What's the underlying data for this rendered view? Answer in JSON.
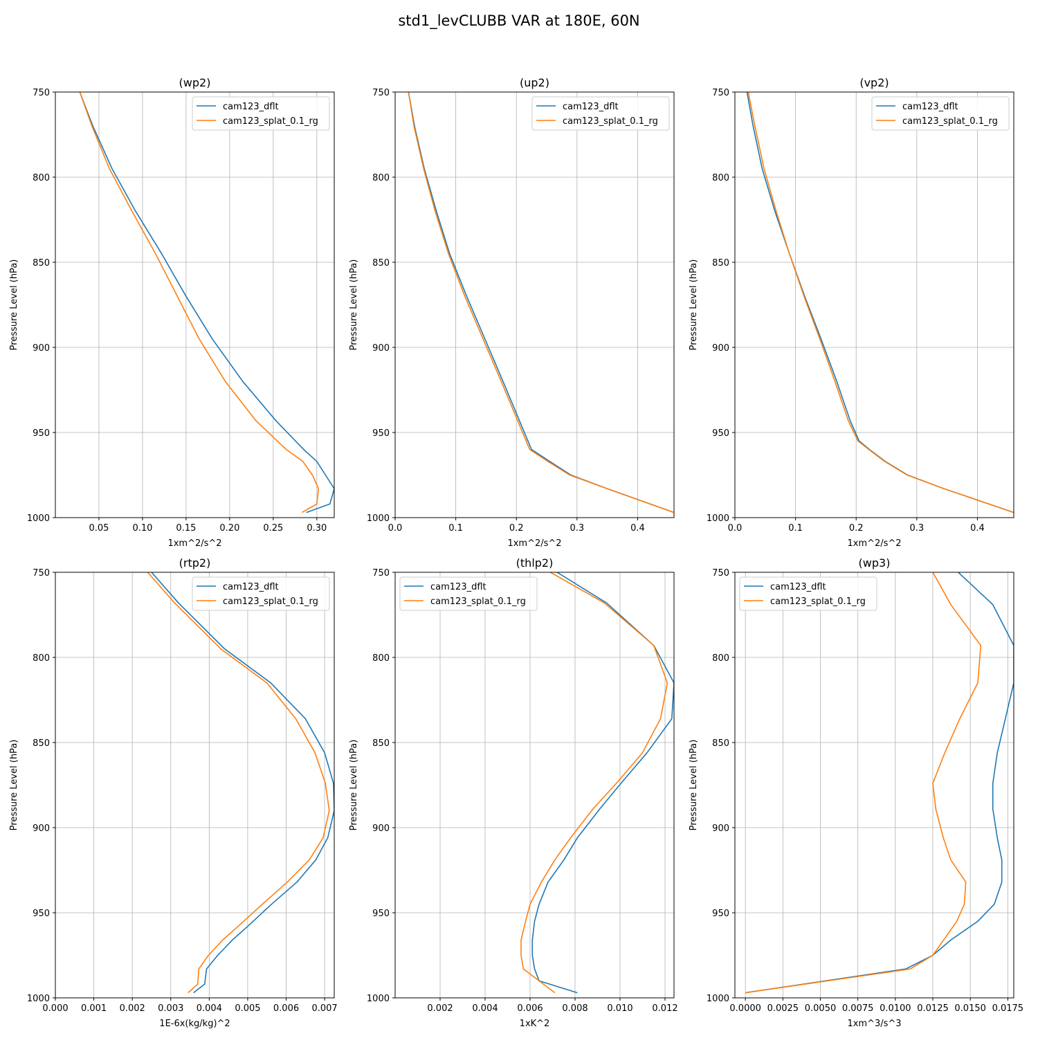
{
  "title": "std1_levCLUBB VAR at 180E, 60N",
  "colors": {
    "cam123_dflt": "#1f77b4",
    "cam123_splat_0.1_rg": "#ff7f0e"
  },
  "chart_data": [
    {
      "type": "line",
      "title": "(wp2)",
      "xlabel": "1xm^2/s^2",
      "ylabel": "Pressure Level (hPa)",
      "xlim": [
        0,
        0.32
      ],
      "ylim": [
        1000,
        750
      ],
      "y_inverted": true,
      "xticks": [
        0.05,
        0.1,
        0.15,
        0.2,
        0.25,
        0.3
      ],
      "xtick_labels": [
        "0.05",
        "0.10",
        "0.15",
        "0.20",
        "0.25",
        "0.30"
      ],
      "yticks": [
        750,
        800,
        850,
        900,
        950,
        1000
      ],
      "ytick_labels": [
        "750",
        "800",
        "850",
        "900",
        "950",
        "1000"
      ],
      "grid": true,
      "legend": "upper right",
      "series": [
        {
          "name": "cam123_dflt",
          "x": [
            0.028,
            0.043,
            0.065,
            0.092,
            0.122,
            0.15,
            0.18,
            0.215,
            0.253,
            0.285,
            0.3,
            0.31,
            0.32,
            0.315,
            0.288
          ],
          "y": [
            750,
            770,
            795,
            820,
            845,
            870,
            895,
            920,
            943,
            960,
            967,
            975,
            983,
            992,
            997
          ]
        },
        {
          "name": "cam123_splat_0.1_rg",
          "x": [
            0.028,
            0.042,
            0.062,
            0.088,
            0.115,
            0.14,
            0.165,
            0.195,
            0.23,
            0.265,
            0.284,
            0.295,
            0.302,
            0.3,
            0.283
          ],
          "y": [
            750,
            770,
            795,
            820,
            845,
            870,
            895,
            920,
            943,
            960,
            967,
            975,
            983,
            992,
            997
          ]
        }
      ]
    },
    {
      "type": "line",
      "title": "(up2)",
      "xlabel": "1xm^2/s^2",
      "ylabel": "Pressure Level (hPa)",
      "xlim": [
        0,
        0.46
      ],
      "ylim": [
        1000,
        750
      ],
      "y_inverted": true,
      "xticks": [
        0.0,
        0.1,
        0.2,
        0.3,
        0.4
      ],
      "xtick_labels": [
        "0.0",
        "0.1",
        "0.2",
        "0.3",
        "0.4"
      ],
      "yticks": [
        750,
        800,
        850,
        900,
        950,
        1000
      ],
      "ytick_labels": [
        "750",
        "800",
        "850",
        "900",
        "950",
        "1000"
      ],
      "grid": true,
      "legend": "upper right",
      "series": [
        {
          "name": "cam123_dflt",
          "x": [
            0.022,
            0.032,
            0.048,
            0.068,
            0.09,
            0.118,
            0.148,
            0.178,
            0.205,
            0.225,
            0.255,
            0.29,
            0.35,
            0.46
          ],
          "y": [
            750,
            770,
            795,
            820,
            845,
            870,
            895,
            920,
            943,
            960,
            967,
            975,
            983,
            997
          ]
        },
        {
          "name": "cam123_splat_0.1_rg",
          "x": [
            0.022,
            0.031,
            0.047,
            0.066,
            0.088,
            0.115,
            0.145,
            0.175,
            0.202,
            0.222,
            0.252,
            0.288,
            0.35,
            0.46
          ],
          "y": [
            750,
            770,
            795,
            820,
            845,
            870,
            895,
            920,
            943,
            960,
            967,
            975,
            983,
            997
          ]
        }
      ]
    },
    {
      "type": "line",
      "title": "(vp2)",
      "xlabel": "1xm^2/s^2",
      "ylabel": "Pressure Level (hPa)",
      "xlim": [
        0,
        0.46
      ],
      "ylim": [
        1000,
        750
      ],
      "y_inverted": true,
      "xticks": [
        0.0,
        0.1,
        0.2,
        0.3,
        0.4
      ],
      "xtick_labels": [
        "0.0",
        "0.1",
        "0.2",
        "0.3",
        "0.4"
      ],
      "yticks": [
        750,
        800,
        850,
        900,
        950,
        1000
      ],
      "ytick_labels": [
        "750",
        "800",
        "850",
        "900",
        "950",
        "1000"
      ],
      "grid": true,
      "legend": "upper right",
      "series": [
        {
          "name": "cam123_dflt",
          "x": [
            0.02,
            0.03,
            0.045,
            0.066,
            0.09,
            0.115,
            0.142,
            0.168,
            0.19,
            0.205,
            0.222,
            0.248,
            0.285,
            0.345,
            0.46
          ],
          "y": [
            750,
            770,
            795,
            820,
            845,
            870,
            895,
            920,
            943,
            955,
            960,
            967,
            975,
            983,
            997
          ]
        },
        {
          "name": "cam123_splat_0.1_rg",
          "x": [
            0.022,
            0.033,
            0.048,
            0.068,
            0.09,
            0.114,
            0.14,
            0.165,
            0.187,
            0.203,
            0.221,
            0.247,
            0.284,
            0.345,
            0.46
          ],
          "y": [
            750,
            770,
            795,
            820,
            845,
            870,
            895,
            920,
            943,
            955,
            960,
            967,
            975,
            983,
            997
          ]
        }
      ]
    },
    {
      "type": "line",
      "title": "(rtp2)",
      "xlabel": "1E-6x(kg/kg)^2",
      "ylabel": "Pressure Level (hPa)",
      "xlim": [
        0,
        0.00725
      ],
      "ylim": [
        1000,
        750
      ],
      "y_inverted": true,
      "xticks": [
        0,
        0.001,
        0.002,
        0.003,
        0.004,
        0.005,
        0.006,
        0.007
      ],
      "xtick_labels": [
        "0.000",
        "0.001",
        "0.002",
        "0.003",
        "0.004",
        "0.005",
        "0.006",
        "0.007"
      ],
      "yticks": [
        750,
        800,
        850,
        900,
        950,
        1000
      ],
      "ytick_labels": [
        "750",
        "800",
        "850",
        "900",
        "950",
        "1000"
      ],
      "grid": true,
      "legend": "upper right",
      "series": [
        {
          "name": "cam123_dflt",
          "x": [
            0.0025,
            0.0032,
            0.0044,
            0.0056,
            0.0065,
            0.007,
            0.00723,
            0.00725,
            0.00708,
            0.00677,
            0.00628,
            0.00562,
            0.005,
            0.0046,
            0.00422,
            0.00393,
            0.00388,
            0.00359
          ],
          "y": [
            750,
            768,
            795,
            815,
            836,
            856,
            874,
            890,
            906,
            919,
            932,
            945,
            958,
            966,
            975,
            983,
            992,
            997
          ]
        },
        {
          "name": "cam123_splat_0.1_rg",
          "x": [
            0.0024,
            0.0031,
            0.0043,
            0.0055,
            0.00625,
            0.00675,
            0.00702,
            0.00712,
            0.00696,
            0.0066,
            0.00603,
            0.00538,
            0.00475,
            0.00435,
            0.00398,
            0.00373,
            0.0037,
            0.00345
          ],
          "y": [
            750,
            768,
            795,
            815,
            836,
            856,
            874,
            890,
            906,
            919,
            932,
            945,
            958,
            966,
            975,
            983,
            992,
            997
          ]
        }
      ]
    },
    {
      "type": "line",
      "title": "(thlp2)",
      "xlabel": "1xK^2",
      "ylabel": "Pressure Level (hPa)",
      "xlim": [
        0,
        0.0124
      ],
      "ylim": [
        1000,
        750
      ],
      "y_inverted": true,
      "xticks": [
        0.002,
        0.004,
        0.006,
        0.008,
        0.01,
        0.012
      ],
      "xtick_labels": [
        "0.002",
        "0.004",
        "0.006",
        "0.008",
        "0.010",
        "0.012"
      ],
      "yticks": [
        750,
        800,
        850,
        900,
        950,
        1000
      ],
      "ytick_labels": [
        "750",
        "800",
        "850",
        "900",
        "950",
        "1000"
      ],
      "grid": true,
      "legend": "upper left",
      "series": [
        {
          "name": "cam123_dflt",
          "x": [
            0.0072,
            0.0094,
            0.0115,
            0.0124,
            0.0123,
            0.0112,
            0.0101,
            0.0091,
            0.0081,
            0.0075,
            0.0068,
            0.0064,
            0.0062,
            0.0061,
            0.0061,
            0.0061,
            0.0062,
            0.0064,
            0.0081
          ],
          "y": [
            750,
            768,
            793,
            815,
            836,
            856,
            873,
            889,
            906,
            919,
            932,
            945,
            955,
            966,
            970,
            975,
            983,
            990,
            997
          ]
        },
        {
          "name": "cam123_splat_0.1_rg",
          "x": [
            0.0069,
            0.0093,
            0.0115,
            0.0121,
            0.0118,
            0.011,
            0.0099,
            0.0088,
            0.0078,
            0.0071,
            0.0065,
            0.006,
            0.0058,
            0.0056,
            0.0056,
            0.0056,
            0.0057,
            0.0064,
            0.0071
          ],
          "y": [
            750,
            768,
            793,
            815,
            836,
            856,
            873,
            889,
            906,
            919,
            932,
            945,
            955,
            966,
            970,
            975,
            983,
            990,
            997
          ]
        }
      ]
    },
    {
      "type": "line",
      "title": "(wp3)",
      "xlabel": "1xm^3/s^3",
      "ylabel": "Pressure Level (hPa)",
      "xlim": [
        -0.0007,
        0.0179
      ],
      "ylim": [
        1000,
        750
      ],
      "y_inverted": true,
      "xticks": [
        0,
        0.0025,
        0.005,
        0.0075,
        0.01,
        0.0125,
        0.015,
        0.0175
      ],
      "xtick_labels": [
        "0.0000",
        "0.0025",
        "0.0050",
        "0.0075",
        "0.0100",
        "0.0125",
        "0.0150",
        "0.0175"
      ],
      "yticks": [
        750,
        800,
        850,
        900,
        950,
        1000
      ],
      "ytick_labels": [
        "750",
        "800",
        "850",
        "900",
        "950",
        "1000"
      ],
      "grid": true,
      "legend": "upper left",
      "series": [
        {
          "name": "cam123_dflt",
          "x": [
            0.0142,
            0.0165,
            0.0179,
            0.0179,
            0.0168,
            0.0165,
            0.0165,
            0.0168,
            0.0171,
            0.0171,
            0.0166,
            0.0155,
            0.0137,
            0.0125,
            0.0107,
            0.0
          ],
          "y": [
            750,
            769,
            793,
            815,
            856,
            874,
            889,
            906,
            919,
            932,
            945,
            955,
            966,
            975,
            983,
            997
          ]
        },
        {
          "name": "cam123_splat_0.1_rg",
          "x": [
            0.0125,
            0.0137,
            0.0157,
            0.0155,
            0.0143,
            0.0133,
            0.0125,
            0.0127,
            0.0132,
            0.0137,
            0.0147,
            0.0146,
            0.0141,
            0.0125,
            0.011,
            0.0
          ],
          "y": [
            750,
            769,
            793,
            815,
            836,
            856,
            874,
            889,
            906,
            919,
            932,
            945,
            955,
            975,
            983,
            997
          ]
        }
      ]
    }
  ]
}
